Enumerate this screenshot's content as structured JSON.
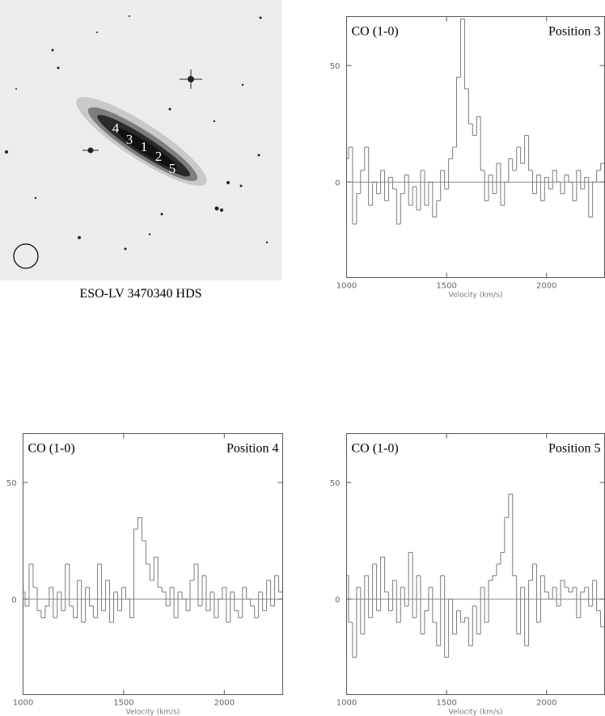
{
  "image": {
    "caption": "ESO-LV 3470340 HDS",
    "labels": [
      "4",
      "3",
      "1",
      "2",
      "5"
    ]
  },
  "chart_data": [
    {
      "type": "step",
      "title": "CO (1-0)",
      "annotation": "Position 3",
      "xlabel": "Velocity (km/s)",
      "xlim": [
        1000,
        2290
      ],
      "ylim": [
        -41,
        71
      ],
      "xticks": [
        1000,
        1500,
        2000
      ],
      "yticks": [
        0,
        50
      ],
      "zero_line": true,
      "x": [
        1000,
        1020,
        1040,
        1060,
        1080,
        1100,
        1120,
        1140,
        1160,
        1180,
        1200,
        1220,
        1240,
        1260,
        1280,
        1300,
        1320,
        1340,
        1360,
        1380,
        1400,
        1420,
        1440,
        1460,
        1480,
        1500,
        1520,
        1540,
        1560,
        1580,
        1600,
        1620,
        1640,
        1660,
        1680,
        1700,
        1720,
        1740,
        1760,
        1780,
        1800,
        1820,
        1840,
        1860,
        1880,
        1900,
        1920,
        1940,
        1960,
        1980,
        2000,
        2020,
        2040,
        2060,
        2080,
        2100,
        2120,
        2140,
        2160,
        2180,
        2200,
        2220,
        2240,
        2260,
        2280
      ],
      "series": [
        {
          "color": "#7a7a7a",
          "values": [
            10,
            15,
            -18,
            -5,
            5,
            15,
            -10,
            0,
            -5,
            5,
            -8,
            2,
            -3,
            -18,
            -5,
            3,
            -10,
            -2,
            -12,
            5,
            -10,
            0,
            -15,
            -8,
            5,
            -3,
            10,
            15,
            45,
            70,
            40,
            25,
            20,
            28,
            5,
            -8,
            3,
            -5,
            8,
            -10,
            0,
            10,
            5,
            15,
            8,
            20,
            5,
            -5,
            3,
            -8,
            2,
            -3,
            5,
            0,
            -5,
            3,
            0,
            -8,
            5,
            -3,
            2,
            -15,
            0,
            5,
            8
          ]
        }
      ]
    },
    {
      "type": "step",
      "title": "CO (1-0)",
      "annotation": "Position 4",
      "xlabel": "Velocity (km/s)",
      "xlim": [
        1000,
        2290
      ],
      "ylim": [
        -41,
        71
      ],
      "xticks": [
        1000,
        1500,
        2000
      ],
      "yticks": [
        0,
        50
      ],
      "zero_line": true,
      "x": [
        1000,
        1020,
        1040,
        1060,
        1080,
        1100,
        1120,
        1140,
        1160,
        1180,
        1200,
        1220,
        1240,
        1260,
        1280,
        1300,
        1320,
        1340,
        1360,
        1380,
        1400,
        1420,
        1440,
        1460,
        1480,
        1500,
        1520,
        1540,
        1560,
        1580,
        1600,
        1620,
        1640,
        1660,
        1680,
        1700,
        1720,
        1740,
        1760,
        1780,
        1800,
        1820,
        1840,
        1860,
        1880,
        1900,
        1920,
        1940,
        1960,
        1980,
        2000,
        2020,
        2040,
        2060,
        2080,
        2100,
        2120,
        2140,
        2160,
        2180,
        2200,
        2220,
        2240,
        2260,
        2280
      ],
      "series": [
        {
          "color": "#7a7a7a",
          "values": [
            3,
            -3,
            15,
            5,
            -5,
            -8,
            -3,
            5,
            -8,
            3,
            -5,
            15,
            -3,
            -8,
            8,
            -10,
            5,
            -3,
            -8,
            15,
            -5,
            8,
            -10,
            3,
            -5,
            5,
            0,
            -8,
            30,
            35,
            25,
            15,
            8,
            18,
            5,
            3,
            -3,
            5,
            -8,
            3,
            0,
            -5,
            8,
            15,
            -3,
            10,
            -5,
            3,
            -8,
            0,
            5,
            -10,
            3,
            -5,
            -8,
            5,
            0,
            -3,
            -8,
            3,
            -5,
            8,
            -3,
            10,
            3
          ]
        }
      ]
    },
    {
      "type": "step",
      "title": "CO (1-0)",
      "annotation": "Position 5",
      "xlabel": "Velocity (km/s)",
      "xlim": [
        1000,
        2290
      ],
      "ylim": [
        -41,
        71
      ],
      "xticks": [
        1000,
        1500,
        2000
      ],
      "yticks": [
        0,
        50
      ],
      "zero_line": true,
      "x": [
        1000,
        1020,
        1040,
        1060,
        1080,
        1100,
        1120,
        1140,
        1160,
        1180,
        1200,
        1220,
        1240,
        1260,
        1280,
        1300,
        1320,
        1340,
        1360,
        1380,
        1400,
        1420,
        1440,
        1460,
        1480,
        1500,
        1520,
        1540,
        1560,
        1580,
        1600,
        1620,
        1640,
        1660,
        1680,
        1700,
        1720,
        1740,
        1760,
        1780,
        1800,
        1820,
        1840,
        1860,
        1880,
        1900,
        1920,
        1940,
        1960,
        1980,
        2000,
        2020,
        2040,
        2060,
        2080,
        2100,
        2120,
        2140,
        2160,
        2180,
        2200,
        2220,
        2240,
        2260,
        2280
      ],
      "series": [
        {
          "color": "#7a7a7a",
          "values": [
            10,
            -10,
            -25,
            5,
            -15,
            10,
            -8,
            15,
            -5,
            18,
            3,
            -5,
            8,
            -10,
            5,
            -3,
            20,
            -8,
            10,
            -15,
            -5,
            5,
            -10,
            -20,
            10,
            -25,
            0,
            -15,
            -5,
            -10,
            -8,
            -20,
            -3,
            -15,
            5,
            -10,
            8,
            10,
            15,
            20,
            35,
            45,
            10,
            -15,
            5,
            -20,
            8,
            15,
            -10,
            10,
            3,
            0,
            5,
            -3,
            8,
            5,
            3,
            5,
            -8,
            3,
            5,
            -3,
            8,
            -5,
            -12
          ]
        }
      ]
    }
  ]
}
